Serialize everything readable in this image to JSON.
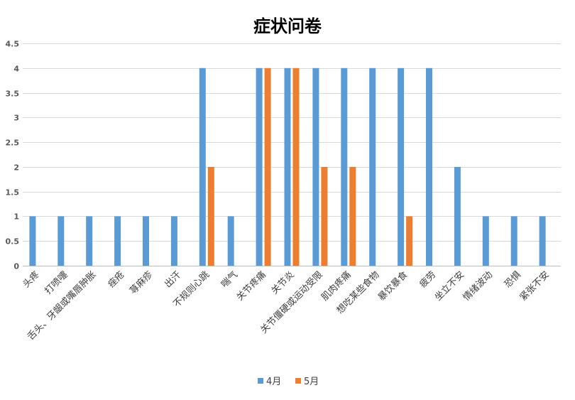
{
  "chart_data": {
    "type": "bar",
    "title": "症状问卷",
    "xlabel": "",
    "ylabel": "",
    "ylim": [
      0,
      4.5
    ],
    "yticks": [
      0,
      0.5,
      1,
      1.5,
      2,
      2.5,
      3,
      3.5,
      4,
      4.5
    ],
    "ytick_labels": [
      "0",
      "0.5",
      "1",
      "1.5",
      "2",
      "2.5",
      "3",
      "3.5",
      "4",
      "4.5"
    ],
    "grid": true,
    "legend_position": "bottom",
    "categories": [
      "头疼",
      "打喷嚏",
      "舌头、牙龈或嘴唇肿胀",
      "痤疮",
      "荨麻疹",
      "出汗",
      "不规则心跳",
      "喘气",
      "关节疼痛",
      "关节炎",
      "关节僵硬或运动受限",
      "肌肉疼痛",
      "想吃某些食物",
      "暴饮暴食",
      "疲劳",
      "坐立不安",
      "情绪波动",
      "恐惧",
      "紧张不安"
    ],
    "series": [
      {
        "name": "4月",
        "color": "#5b9bd5",
        "values": [
          1,
          1,
          1,
          1,
          1,
          1,
          4,
          1,
          4,
          4,
          4,
          4,
          4,
          4,
          4,
          2,
          1,
          1,
          1
        ]
      },
      {
        "name": "5月",
        "color": "#ed7d31",
        "values": [
          0,
          0,
          0,
          0,
          0,
          0,
          2,
          0,
          4,
          4,
          2,
          2,
          0,
          1,
          0,
          0,
          0,
          0,
          0
        ]
      }
    ]
  }
}
